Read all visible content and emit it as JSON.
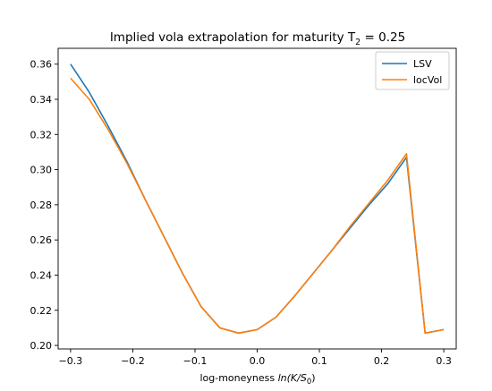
{
  "chart_data": {
    "type": "line",
    "title_main": "Implied vola extrapolation for maturity T",
    "title_sub": "2",
    "title_rest": " = 0.25",
    "xlabel_prefix": "log-moneyness ",
    "xlabel_math": "ln(K/S",
    "xlabel_sub": "0",
    "xlabel_close": ")",
    "xlim": [
      -0.32,
      0.32
    ],
    "ylim": [
      0.198,
      0.369
    ],
    "xticks": [
      -0.3,
      -0.2,
      -0.1,
      0.0,
      0.1,
      0.2,
      0.3
    ],
    "xtick_labels": [
      "−0.3",
      "−0.2",
      "−0.1",
      "0.0",
      "0.1",
      "0.2",
      "0.3"
    ],
    "yticks": [
      0.2,
      0.22,
      0.24,
      0.26,
      0.28,
      0.3,
      0.32,
      0.34,
      0.36
    ],
    "ytick_labels": [
      "0.20",
      "0.22",
      "0.24",
      "0.26",
      "0.28",
      "0.30",
      "0.32",
      "0.34",
      "0.36"
    ],
    "grid": false,
    "legend_position": "top-right",
    "series": [
      {
        "name": "LSV",
        "color": "#1f77b4",
        "x": [
          -0.3,
          -0.27,
          -0.24,
          -0.21,
          -0.18,
          -0.15,
          -0.12,
          -0.09,
          -0.06,
          -0.03,
          0.0,
          0.03,
          0.06,
          0.09,
          0.12,
          0.15,
          0.18,
          0.21,
          0.24,
          0.27,
          0.3
        ],
        "y": [
          0.36,
          0.344,
          0.325,
          0.305,
          0.283,
          0.262,
          0.241,
          0.222,
          0.21,
          0.207,
          0.209,
          0.216,
          0.228,
          0.241,
          0.254,
          0.267,
          0.28,
          0.292,
          0.307,
          0.207,
          0.209
        ]
      },
      {
        "name": "locVol",
        "color": "#ff7f0e",
        "x": [
          -0.3,
          -0.27,
          -0.24,
          -0.21,
          -0.18,
          -0.15,
          -0.12,
          -0.09,
          -0.06,
          -0.03,
          0.0,
          0.03,
          0.06,
          0.09,
          0.12,
          0.15,
          0.18,
          0.21,
          0.24,
          0.27,
          0.3
        ],
        "y": [
          0.352,
          0.34,
          0.323,
          0.304,
          0.283,
          0.262,
          0.241,
          0.222,
          0.21,
          0.207,
          0.209,
          0.216,
          0.228,
          0.241,
          0.254,
          0.268,
          0.281,
          0.294,
          0.309,
          0.207,
          0.209
        ]
      }
    ]
  }
}
